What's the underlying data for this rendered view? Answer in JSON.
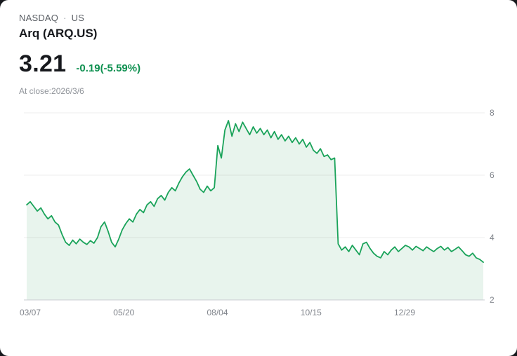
{
  "header": {
    "market": "NASDAQ",
    "dot": "·",
    "region": "US",
    "title": "Arq (ARQ.US)"
  },
  "quote": {
    "price": "3.21",
    "change": "-0.19(-5.59%)",
    "at_close": "At close:2026/3/6"
  },
  "colors": {
    "line": "#1aa35a",
    "fill": "#e8f4ed",
    "change_text": "#0e9050",
    "grid": "#ebebeb",
    "axis": "#caccd1",
    "tick_label": "#81858c"
  },
  "chart_data": {
    "type": "area",
    "xlabel": "",
    "ylabel": "",
    "ylim": [
      2,
      8
    ],
    "yticks": [
      8,
      6,
      4,
      2
    ],
    "xticks": [
      "03/07",
      "05/20",
      "08/04",
      "10/15",
      "12/29"
    ],
    "grid": true,
    "legend": false,
    "values": [
      5.05,
      5.15,
      5.0,
      4.85,
      4.95,
      4.75,
      4.6,
      4.7,
      4.5,
      4.4,
      4.1,
      3.85,
      3.75,
      3.92,
      3.8,
      3.95,
      3.85,
      3.78,
      3.9,
      3.82,
      4.0,
      4.35,
      4.5,
      4.2,
      3.85,
      3.7,
      3.95,
      4.25,
      4.45,
      4.6,
      4.5,
      4.75,
      4.9,
      4.8,
      5.05,
      5.15,
      5.0,
      5.25,
      5.35,
      5.2,
      5.45,
      5.6,
      5.5,
      5.75,
      5.95,
      6.1,
      6.2,
      6.0,
      5.8,
      5.55,
      5.45,
      5.65,
      5.5,
      5.6,
      6.95,
      6.55,
      7.45,
      7.75,
      7.25,
      7.65,
      7.4,
      7.7,
      7.5,
      7.3,
      7.55,
      7.35,
      7.5,
      7.3,
      7.45,
      7.2,
      7.4,
      7.15,
      7.3,
      7.1,
      7.25,
      7.05,
      7.2,
      7.0,
      7.15,
      6.9,
      7.05,
      6.8,
      6.7,
      6.85,
      6.6,
      6.65,
      6.5,
      6.55,
      3.8,
      3.6,
      3.7,
      3.55,
      3.75,
      3.6,
      3.45,
      3.8,
      3.85,
      3.65,
      3.5,
      3.4,
      3.35,
      3.55,
      3.45,
      3.6,
      3.7,
      3.55,
      3.65,
      3.75,
      3.7,
      3.6,
      3.72,
      3.65,
      3.58,
      3.7,
      3.62,
      3.55,
      3.65,
      3.72,
      3.6,
      3.68,
      3.55,
      3.62,
      3.7,
      3.58,
      3.45,
      3.4,
      3.5,
      3.35,
      3.3,
      3.21
    ]
  }
}
